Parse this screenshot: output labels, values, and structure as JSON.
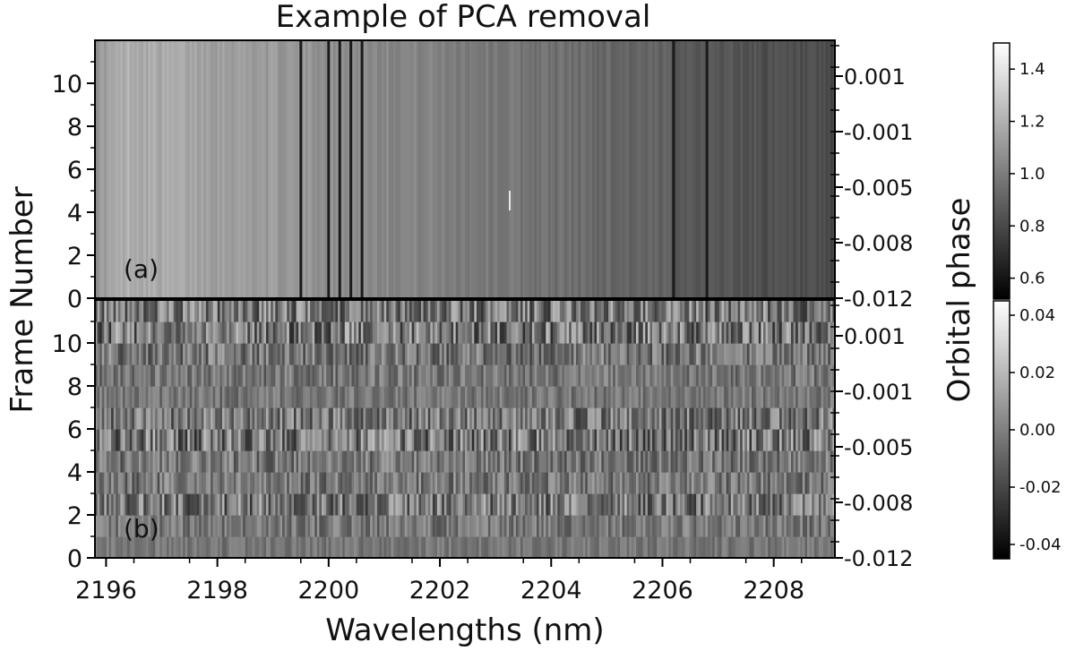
{
  "chart_data": {
    "type": "heatmap",
    "title": "Example of PCA removal",
    "xlabel": "Wavelengths (nm)",
    "ylabel": "Frame Number",
    "ylabel_right": "Orbital phase",
    "xlim": [
      2195.8,
      2209.1
    ],
    "x_ticks": [
      "2196",
      "2198",
      "2200",
      "2202",
      "2204",
      "2206",
      "2208"
    ],
    "colormap": "gray",
    "panels": [
      {
        "label": "(a)",
        "ylim": [
          0,
          12
        ],
        "y_ticks": [
          "0",
          "2",
          "4",
          "6",
          "8",
          "10"
        ],
        "phase_ticks": [
          "-0.012",
          "-0.008",
          "-0.005",
          "-0.001",
          "0.001"
        ],
        "colorbar": {
          "ticks": [
            "0.6",
            "0.8",
            "1.0",
            "1.2",
            "1.4"
          ],
          "range": [
            0.52,
            1.5
          ]
        },
        "dark_lines_nm": [
          2199.5,
          2200.0,
          2200.2,
          2200.4,
          2200.6,
          2206.2,
          2206.8
        ]
      },
      {
        "label": "(b)",
        "ylim": [
          0,
          12
        ],
        "y_ticks": [
          "0",
          "2",
          "4",
          "6",
          "8",
          "10"
        ],
        "phase_ticks": [
          "-0.012",
          "-0.008",
          "-0.005",
          "-0.001",
          "0.001"
        ],
        "colorbar": {
          "ticks": [
            "-0.04",
            "-0.02",
            "0.00",
            "0.02",
            "0.04"
          ],
          "range": [
            -0.045,
            0.045
          ]
        }
      }
    ]
  }
}
